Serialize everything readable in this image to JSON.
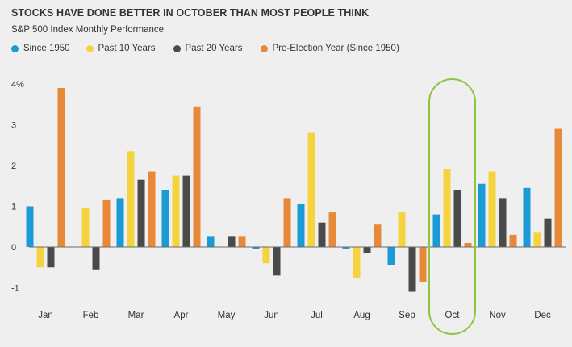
{
  "chart_data": {
    "type": "bar",
    "title": "STOCKS HAVE DONE BETTER IN OCTOBER THAN MOST PEOPLE THINK",
    "subtitle": "S&P 500 Index Monthly Performance",
    "categories": [
      "Jan",
      "Feb",
      "Mar",
      "Apr",
      "May",
      "Jun",
      "Jul",
      "Aug",
      "Sep",
      "Oct",
      "Nov",
      "Dec"
    ],
    "series": [
      {
        "name": "Since 1950",
        "color": "#1a9ad7",
        "values": [
          1.0,
          0.0,
          1.2,
          1.4,
          0.25,
          -0.05,
          1.05,
          -0.05,
          -0.45,
          0.8,
          1.55,
          1.45
        ]
      },
      {
        "name": "Past 10 Years",
        "color": "#f5d33f",
        "values": [
          -0.5,
          0.95,
          2.35,
          1.75,
          0.0,
          -0.4,
          2.8,
          -0.75,
          0.85,
          1.9,
          1.85,
          0.35
        ]
      },
      {
        "name": "Past 20 Years",
        "color": "#4a4a4a",
        "values": [
          -0.5,
          -0.55,
          1.65,
          1.75,
          0.25,
          -0.7,
          0.6,
          -0.15,
          -1.1,
          1.4,
          1.2,
          0.7
        ]
      },
      {
        "name": "Pre-Election Year (Since 1950)",
        "color": "#e8893a",
        "values": [
          3.9,
          1.15,
          1.85,
          3.45,
          0.25,
          1.2,
          0.85,
          0.55,
          -0.85,
          0.1,
          0.3,
          2.9
        ]
      }
    ],
    "yticks": [
      {
        "value": 4,
        "label": "4%"
      },
      {
        "value": 3,
        "label": "3"
      },
      {
        "value": 2,
        "label": "2"
      },
      {
        "value": 1,
        "label": "1"
      },
      {
        "value": 0,
        "label": "0"
      },
      {
        "value": -1,
        "label": "-1"
      }
    ],
    "ylim": [
      -1.5,
      4.2
    ],
    "grid": false,
    "legend_position": "top-left",
    "highlight": {
      "category": "Oct",
      "color": "#8cc63f"
    }
  }
}
